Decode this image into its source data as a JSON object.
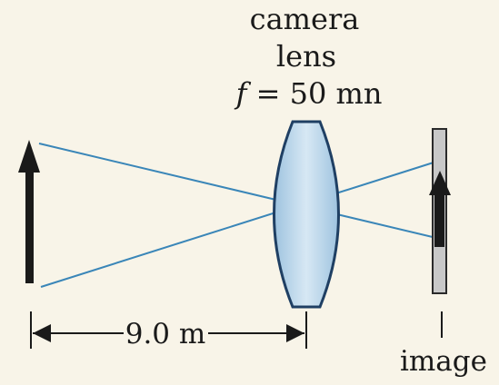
{
  "title": {
    "line1": "camera",
    "line2": "lens",
    "focal_symbol": "f",
    "focal_eq": " = 50 mn"
  },
  "distance_label": "9.0 m",
  "image_label": "image",
  "colors": {
    "background": "#f8f4e8",
    "ray": "#3a86b8",
    "lens_fill": "#b7d3e8",
    "lens_stroke": "#1f3f63",
    "arrow": "#1a1a1a",
    "screen": "#c8c8c8"
  }
}
